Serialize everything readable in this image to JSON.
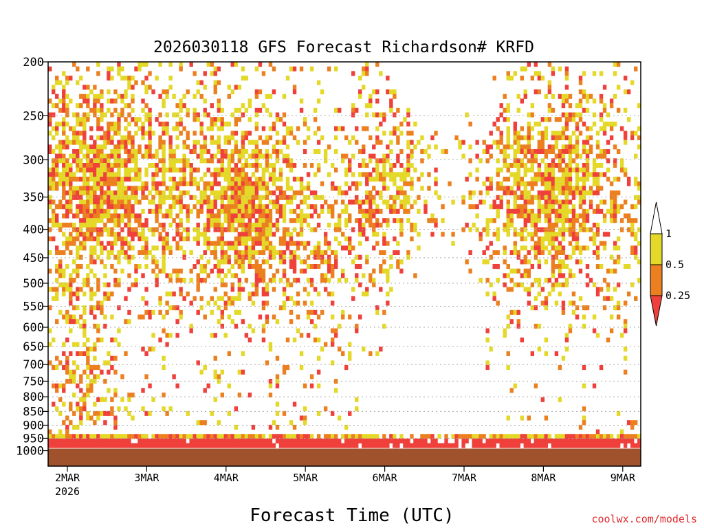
{
  "chart_data": {
    "type": "heatmap",
    "title": "2026030118 GFS Forecast Richardson# KRFD",
    "xlabel": "Forecast Time (UTC)",
    "ylabel": "",
    "x_ticks": [
      "2MAR",
      "3MAR",
      "4MAR",
      "5MAR",
      "6MAR",
      "7MAR",
      "8MAR",
      "9MAR"
    ],
    "x_year_label": "2026",
    "y_ticks": [
      200,
      250,
      300,
      350,
      400,
      450,
      500,
      550,
      600,
      650,
      700,
      750,
      800,
      850,
      900,
      950,
      1000
    ],
    "y_axis": "pressure (hPa), log scale, inverted",
    "ylim": [
      200,
      1030
    ],
    "gridlines": "dotted at interior pressure levels",
    "colorbar": {
      "levels": [
        "0.25",
        "0.5",
        "1"
      ],
      "colors": [
        "#f0403c",
        "#ec8020",
        "#e4d828"
      ],
      "meaning": [
        "< 0.25",
        "0.25-0.5",
        "0.5-1"
      ]
    },
    "ground_color": "#a0522d",
    "credit": "coolwx.com/models"
  },
  "colors": {
    "red": "#f0403c",
    "orange": "#ec8020",
    "yellow": "#e4d828",
    "brown": "#a0522d"
  }
}
